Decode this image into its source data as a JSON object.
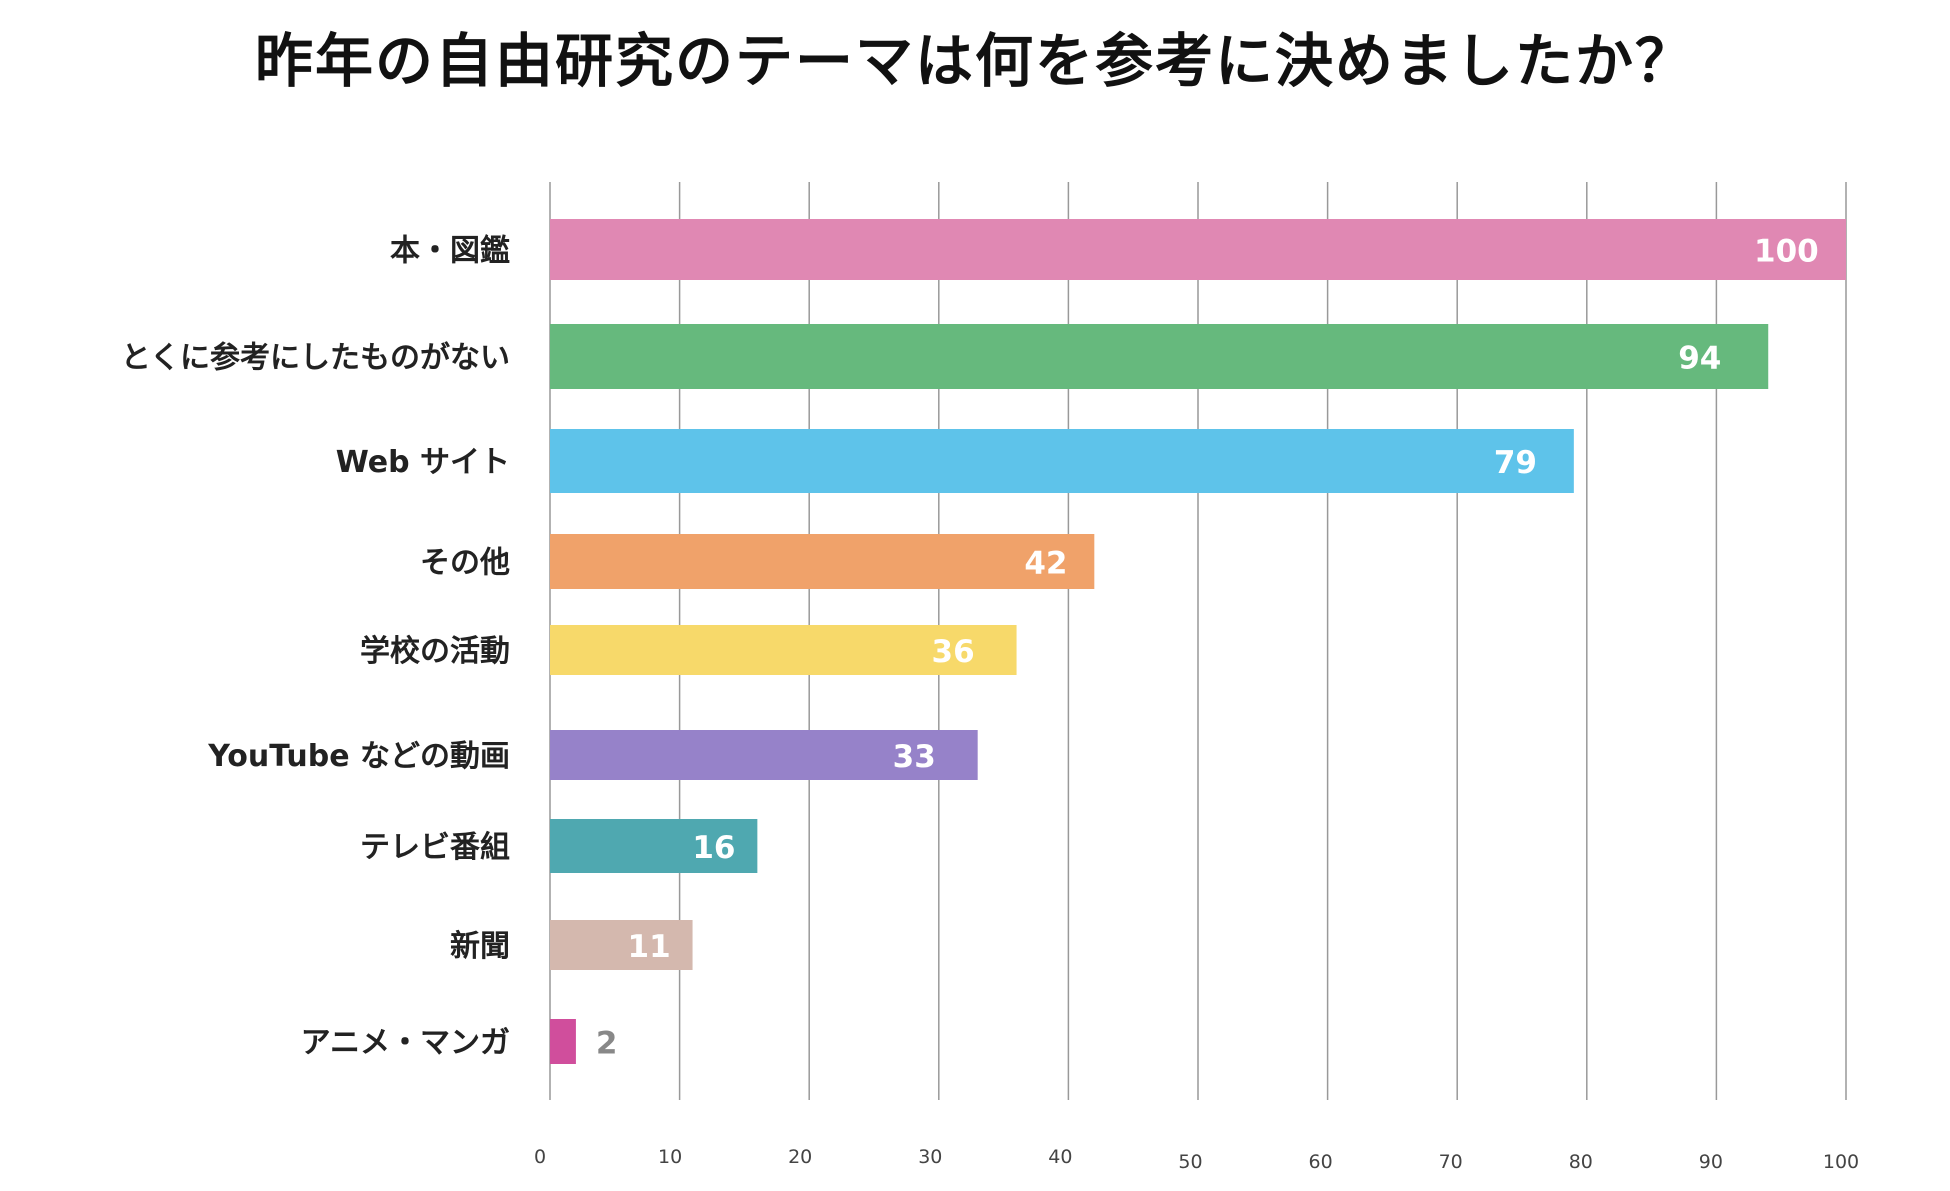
{
  "title": "昨年の自由研究のテーマは何を参考に決めましたか？",
  "chart_data": {
    "type": "bar",
    "orientation": "horizontal",
    "title": "昨年の自由研究のテーマは何を参考に決めましたか？",
    "categories": [
      "本・図鑑",
      "とくに参考にしたものがない",
      "Web サイト",
      "その他",
      "学校の活動",
      "YouTube などの動画",
      "テレビ番組",
      "新聞",
      "アニメ・マンガ"
    ],
    "values": [
      100,
      94,
      79,
      42,
      36,
      33,
      16,
      11,
      2
    ],
    "colors": [
      "#e088b3",
      "#66b97d",
      "#5ec3ea",
      "#f0a26a",
      "#f7d96a",
      "#9682c9",
      "#4fa8b0",
      "#d4b8ae",
      "#d04e9c"
    ],
    "value_label_colors": [
      "#ffffff",
      "#ffffff",
      "#ffffff",
      "#ffffff",
      "#ffffff",
      "#ffffff",
      "#ffffff",
      "#ffffff",
      "#888888"
    ],
    "xlim": [
      0,
      100
    ],
    "xticks": [
      "0",
      "10",
      "20",
      "30",
      "40",
      "50",
      "60",
      "70",
      "80",
      "90",
      "100"
    ],
    "grid": true,
    "gridline_color": "#999999"
  }
}
